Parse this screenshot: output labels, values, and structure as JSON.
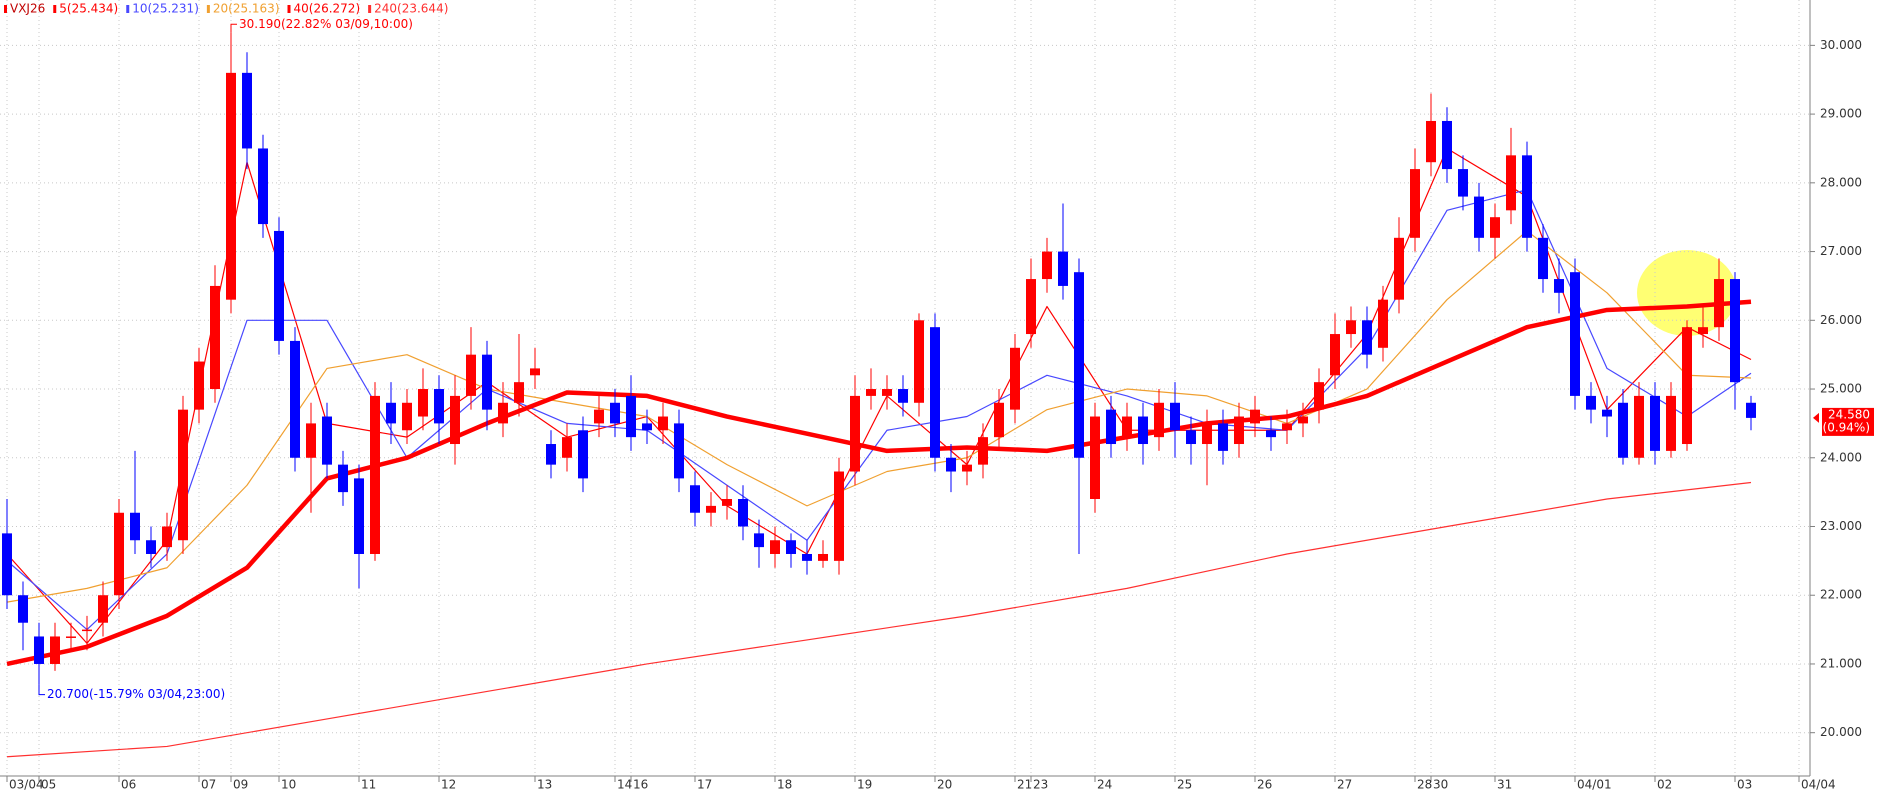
{
  "chart_data": {
    "type": "candlestick",
    "title": "VXJ26",
    "categories": [
      "03/04",
      null,
      "05",
      null,
      null,
      null,
      null,
      "06",
      null,
      null,
      null,
      null,
      "07",
      null,
      "09",
      null,
      null,
      "10",
      null,
      null,
      null,
      null,
      "11",
      null,
      null,
      null,
      null,
      "12",
      null,
      null,
      null,
      null,
      null,
      "13",
      null,
      null,
      null,
      null,
      "14",
      "16",
      null,
      null,
      null,
      "17",
      null,
      null,
      null,
      null,
      "18",
      null,
      null,
      null,
      null,
      "19",
      null,
      null,
      null,
      null,
      "20",
      null,
      null,
      null,
      null,
      "21",
      "23",
      null,
      null,
      null,
      "24",
      null,
      null,
      null,
      null,
      "25",
      null,
      null,
      null,
      null,
      "26",
      null,
      null,
      null,
      null,
      "27",
      null,
      null,
      null,
      null,
      "28",
      "30",
      null,
      null,
      null,
      "31",
      null,
      null,
      null,
      null,
      "04/01",
      null,
      null,
      null,
      null,
      "02",
      null,
      null,
      null,
      null,
      "03",
      null,
      null,
      null,
      "04/04"
    ],
    "open": [
      22.9,
      22.0,
      21.4,
      21.0,
      21.4,
      21.5,
      21.6,
      22.0,
      23.2,
      22.8,
      22.7,
      22.8,
      24.7,
      25.0,
      26.3,
      29.6,
      28.5,
      27.3,
      25.7,
      24.0,
      24.6,
      23.9,
      23.7,
      22.6,
      24.8,
      24.4,
      24.6,
      25.0,
      24.2,
      24.9,
      25.5,
      24.5,
      24.8,
      25.2,
      24.2,
      24.0,
      24.4,
      24.5,
      24.8,
      24.9,
      24.5,
      24.4,
      24.5,
      23.6,
      23.2,
      23.3,
      23.4,
      22.9,
      22.6,
      22.8,
      22.6,
      22.5,
      22.5,
      23.8,
      24.9,
      24.9,
      25.0,
      24.8,
      25.9,
      24.0,
      23.8,
      23.9,
      24.3,
      24.7,
      25.8,
      26.6,
      27.0,
      26.7,
      23.4,
      24.7,
      24.3,
      24.6,
      24.3,
      24.8,
      24.4,
      24.2,
      24.5,
      24.2,
      24.5,
      24.4,
      24.4,
      24.5,
      24.7,
      25.2,
      25.8,
      26.0,
      25.6,
      26.3,
      27.2,
      28.3,
      28.9,
      28.2,
      27.8,
      27.2,
      27.6,
      28.4,
      27.2,
      26.6,
      26.7,
      24.9,
      24.7,
      24.8,
      24.0,
      24.9,
      24.1,
      24.2,
      25.8,
      25.9,
      26.6,
      24.8,
      null,
      null,
      null
    ],
    "high": [
      23.4,
      22.2,
      21.6,
      21.6,
      21.6,
      21.7,
      22.2,
      23.4,
      24.1,
      23.0,
      23.2,
      24.9,
      25.6,
      26.8,
      30.19,
      29.9,
      28.7,
      27.5,
      25.9,
      24.8,
      24.8,
      24.1,
      23.9,
      25.1,
      25.1,
      25.0,
      25.3,
      25.2,
      25.2,
      25.9,
      25.7,
      25.1,
      25.8,
      25.6,
      24.4,
      24.5,
      24.6,
      24.9,
      25.0,
      25.2,
      24.7,
      24.8,
      24.7,
      23.8,
      23.5,
      23.6,
      23.6,
      23.1,
      23.0,
      22.9,
      22.8,
      22.8,
      24.0,
      25.2,
      25.3,
      25.2,
      25.2,
      26.1,
      26.1,
      24.2,
      24.1,
      24.5,
      25.0,
      25.8,
      26.9,
      27.2,
      27.7,
      26.9,
      24.8,
      24.9,
      24.8,
      24.8,
      25.0,
      25.1,
      24.6,
      24.7,
      24.7,
      24.8,
      24.9,
      24.6,
      24.7,
      24.8,
      25.3,
      26.1,
      26.2,
      26.2,
      26.5,
      27.5,
      28.5,
      29.3,
      29.1,
      28.4,
      28.0,
      27.7,
      28.8,
      28.6,
      27.4,
      26.9,
      26.9,
      25.1,
      24.9,
      25.0,
      25.1,
      25.1,
      25.1,
      26.0,
      26.2,
      26.9,
      26.7,
      24.9,
      null,
      null,
      null
    ],
    "low": [
      21.8,
      21.2,
      20.7,
      20.9,
      21.2,
      21.2,
      21.4,
      21.8,
      22.6,
      22.4,
      22.5,
      22.6,
      24.5,
      24.8,
      26.1,
      28.2,
      27.2,
      25.5,
      23.8,
      23.2,
      23.7,
      23.3,
      22.1,
      22.5,
      24.2,
      24.2,
      24.4,
      24.2,
      23.9,
      24.7,
      24.4,
      24.3,
      24.6,
      25.0,
      23.7,
      23.8,
      23.5,
      24.3,
      24.3,
      24.1,
      24.2,
      24.2,
      23.5,
      23.0,
      23.0,
      23.1,
      22.8,
      22.4,
      22.4,
      22.4,
      22.3,
      22.4,
      22.3,
      23.6,
      24.7,
      24.7,
      24.6,
      24.6,
      23.8,
      23.5,
      23.6,
      23.7,
      24.1,
      24.5,
      25.6,
      26.4,
      26.3,
      22.6,
      23.2,
      24.0,
      24.1,
      23.9,
      24.1,
      24.0,
      23.9,
      23.6,
      23.9,
      24.0,
      24.3,
      24.1,
      24.2,
      24.3,
      24.5,
      25.0,
      25.6,
      25.3,
      25.4,
      26.1,
      27.0,
      28.1,
      28.0,
      27.6,
      27.0,
      26.9,
      27.4,
      27.0,
      26.4,
      26.1,
      24.7,
      24.5,
      24.3,
      23.9,
      23.9,
      23.9,
      24.0,
      24.1,
      25.6,
      25.7,
      24.7,
      24.4,
      null,
      null,
      null
    ],
    "close": [
      22.0,
      21.6,
      21.0,
      21.4,
      21.4,
      21.5,
      22.0,
      23.2,
      22.8,
      22.6,
      23.0,
      24.7,
      25.4,
      26.5,
      29.6,
      28.5,
      27.4,
      25.7,
      24.0,
      24.5,
      23.9,
      23.5,
      22.6,
      24.9,
      24.5,
      24.8,
      25.0,
      24.5,
      24.9,
      25.5,
      24.7,
      24.8,
      25.1,
      25.3,
      23.9,
      24.3,
      23.7,
      24.7,
      24.5,
      24.3,
      24.4,
      24.6,
      23.7,
      23.2,
      23.3,
      23.4,
      23.0,
      22.7,
      22.8,
      22.6,
      22.5,
      22.6,
      23.8,
      24.9,
      25.0,
      25.0,
      24.8,
      26.0,
      24.0,
      23.8,
      23.9,
      24.3,
      24.8,
      25.6,
      26.6,
      27.0,
      26.5,
      24.0,
      24.6,
      24.2,
      24.6,
      24.2,
      24.8,
      24.4,
      24.2,
      24.5,
      24.1,
      24.6,
      24.7,
      24.3,
      24.5,
      24.6,
      25.1,
      25.8,
      26.0,
      25.5,
      26.3,
      27.2,
      28.2,
      28.9,
      28.2,
      27.8,
      27.2,
      27.5,
      28.4,
      27.2,
      26.6,
      26.4,
      24.9,
      24.7,
      24.6,
      24.0,
      24.9,
      24.1,
      24.9,
      25.9,
      25.9,
      26.6,
      25.1,
      24.58,
      null,
      null,
      null
    ],
    "up_color": "#ff0000",
    "down_color": "#0000ff",
    "series": [
      {
        "name": "5(25.434)",
        "color": "#ff0000",
        "x": [
          0,
          5,
          10,
          15,
          20,
          25,
          30,
          35,
          40,
          45,
          50,
          55,
          60,
          65,
          70,
          75,
          80,
          85,
          90,
          95,
          100,
          105,
          109
        ],
        "values": [
          22.6,
          21.3,
          22.8,
          28.3,
          24.5,
          24.3,
          25.1,
          24.3,
          24.6,
          23.3,
          22.6,
          24.9,
          23.9,
          26.2,
          24.4,
          24.4,
          24.4,
          25.8,
          28.5,
          27.8,
          24.7,
          25.9,
          25.43
        ]
      },
      {
        "name": "10(25.231)",
        "color": "#4848ff",
        "x": [
          0,
          5,
          10,
          15,
          20,
          25,
          30,
          35,
          40,
          45,
          50,
          55,
          60,
          65,
          70,
          75,
          80,
          85,
          90,
          95,
          100,
          105,
          109
        ],
        "values": [
          22.5,
          21.5,
          22.6,
          26.0,
          26.0,
          24.0,
          25.0,
          24.5,
          24.4,
          23.6,
          22.8,
          24.4,
          24.6,
          25.2,
          24.9,
          24.5,
          24.4,
          25.6,
          27.6,
          27.9,
          25.3,
          24.6,
          25.23
        ]
      },
      {
        "name": "20(25.163)",
        "color": "#f0a030",
        "x": [
          0,
          5,
          10,
          15,
          20,
          25,
          30,
          35,
          40,
          45,
          50,
          55,
          60,
          65,
          70,
          75,
          80,
          85,
          90,
          95,
          100,
          105,
          109
        ],
        "values": [
          21.9,
          22.1,
          22.4,
          23.6,
          25.3,
          25.5,
          25.0,
          24.8,
          24.6,
          23.9,
          23.3,
          23.8,
          24.0,
          24.7,
          25.0,
          24.9,
          24.5,
          25.0,
          26.3,
          27.3,
          26.4,
          25.2,
          25.16
        ]
      },
      {
        "name": "40(26.272)",
        "color": "#ff0000",
        "x": [
          0,
          5,
          10,
          15,
          20,
          25,
          30,
          35,
          40,
          45,
          50,
          55,
          60,
          65,
          70,
          75,
          80,
          85,
          90,
          95,
          100,
          105,
          109
        ],
        "values": [
          21.0,
          21.25,
          21.7,
          22.4,
          23.7,
          24.0,
          24.5,
          24.95,
          24.9,
          24.6,
          24.35,
          24.1,
          24.15,
          24.1,
          24.3,
          24.5,
          24.6,
          24.9,
          25.4,
          25.9,
          26.15,
          26.2,
          26.27
        ]
      },
      {
        "name": "240(23.644)",
        "color": "#ff3030",
        "x": [
          0,
          10,
          20,
          30,
          40,
          50,
          60,
          70,
          80,
          90,
          100,
          109
        ],
        "values": [
          19.65,
          19.8,
          20.2,
          20.6,
          21.0,
          21.35,
          21.7,
          22.1,
          22.6,
          23.0,
          23.4,
          23.64
        ]
      }
    ],
    "annotations": [
      {
        "text": "30.190(22.82% 03/09,10:00)",
        "x": 14,
        "y": 30.19,
        "color": "#ff0000"
      },
      {
        "text": "20.700(-15.79% 03/04,23:00)",
        "x": 2,
        "y": 20.7,
        "color": "#0000ff"
      }
    ],
    "last_price": {
      "value": 24.58,
      "label": "24.580",
      "change": "(0.94%)",
      "color": "#ff0000"
    },
    "ylim": [
      19.37,
      30.66
    ],
    "yticks": [
      {
        "value": 20,
        "label": "20.000"
      },
      {
        "value": 21,
        "label": "21.000"
      },
      {
        "value": 22,
        "label": "22.000"
      },
      {
        "value": 23,
        "label": "23.000"
      },
      {
        "value": 24,
        "label": "24.000"
      },
      {
        "value": 25,
        "label": "25.000"
      },
      {
        "value": 26,
        "label": "26.000"
      },
      {
        "value": 27,
        "label": "27.000"
      },
      {
        "value": 28,
        "label": "28.000"
      },
      {
        "value": 29,
        "label": "29.000"
      },
      {
        "value": 30,
        "label": "30.000"
      }
    ],
    "grid": true
  }
}
